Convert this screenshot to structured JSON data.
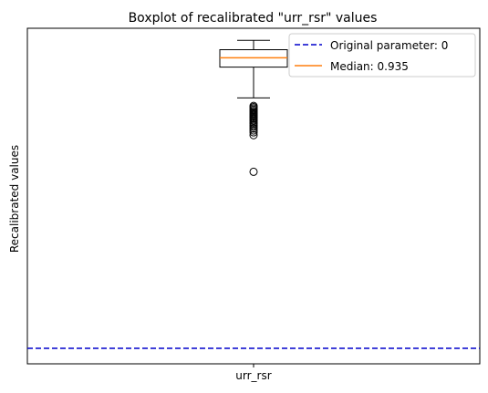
{
  "chart_data": {
    "type": "boxplot",
    "title": "Boxplot of recalibrated \"urr_rsr\" values",
    "xlabel": "",
    "ylabel": "Recalibrated values",
    "categories": [
      "urr_rsr"
    ],
    "y_tick_labels_visible": false,
    "ylim": [
      -0.05,
      1.03
    ],
    "grid": false,
    "box": {
      "whisker_low": 0.806,
      "q1": 0.905,
      "median": 0.935,
      "q3": 0.961,
      "whisker_high": 0.991
    },
    "outliers": [
      0.78,
      0.776,
      0.772,
      0.768,
      0.764,
      0.76,
      0.756,
      0.752,
      0.748,
      0.744,
      0.74,
      0.736,
      0.732,
      0.727,
      0.723,
      0.718,
      0.713,
      0.707,
      0.701,
      0.695,
      0.686,
      0.568
    ],
    "reference_line": {
      "value": 0,
      "label": "Original parameter: 0",
      "color": "#0000cc",
      "style": "dashed"
    },
    "median_label": "Median: 0.935",
    "median_color": "#ff7f0e",
    "legend_placement": "upper-right"
  }
}
